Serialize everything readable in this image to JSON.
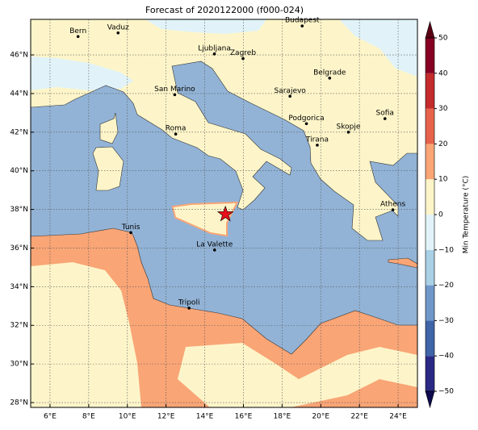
{
  "title": "Forecast of 2020122000 (f000-024)",
  "map": {
    "lonlim": [
      5.0,
      25.0
    ],
    "latlim": [
      27.75,
      47.84
    ],
    "lonticks": [
      {
        "value": 6,
        "label": "6°E"
      },
      {
        "value": 8,
        "label": "8°E"
      },
      {
        "value": 10,
        "label": "10°E"
      },
      {
        "value": 12,
        "label": "12°E"
      },
      {
        "value": 14,
        "label": "14°E"
      },
      {
        "value": 16,
        "label": "16°E"
      },
      {
        "value": 18,
        "label": "18°E"
      },
      {
        "value": 20,
        "label": "20°E"
      },
      {
        "value": 22,
        "label": "22°E"
      },
      {
        "value": 24,
        "label": "24°E"
      }
    ],
    "latticks": [
      {
        "value": 28,
        "label": "28°N"
      },
      {
        "value": 30,
        "label": "30°N"
      },
      {
        "value": 32,
        "label": "32°N"
      },
      {
        "value": 34,
        "label": "34°N"
      },
      {
        "value": 36,
        "label": "36°N"
      },
      {
        "value": 38,
        "label": "38°N"
      },
      {
        "value": 40,
        "label": "40°N"
      },
      {
        "value": 42,
        "label": "42°N"
      },
      {
        "value": 44,
        "label": "44°N"
      },
      {
        "value": 46,
        "label": "46°N"
      }
    ],
    "grid": true,
    "cities": [
      {
        "name": "Bern",
        "lon": 7.45,
        "lat": 46.95
      },
      {
        "name": "Vaduz",
        "lon": 9.52,
        "lat": 47.14
      },
      {
        "name": "Budapest",
        "lon": 19.04,
        "lat": 47.5
      },
      {
        "name": "Ljubljana",
        "lon": 14.5,
        "lat": 46.05
      },
      {
        "name": "Zagreb",
        "lon": 15.98,
        "lat": 45.81
      },
      {
        "name": "San Marino",
        "lon": 12.45,
        "lat": 43.94
      },
      {
        "name": "Belgrade",
        "lon": 20.46,
        "lat": 44.8
      },
      {
        "name": "Sarajevo",
        "lon": 18.41,
        "lat": 43.86
      },
      {
        "name": "Sofia",
        "lon": 23.32,
        "lat": 42.7
      },
      {
        "name": "Roma",
        "lon": 12.5,
        "lat": 41.9
      },
      {
        "name": "Podgorica",
        "lon": 19.26,
        "lat": 42.44
      },
      {
        "name": "Skopje",
        "lon": 21.43,
        "lat": 42.0
      },
      {
        "name": "Tirana",
        "lon": 19.82,
        "lat": 41.33
      },
      {
        "name": "Athens",
        "lon": 23.73,
        "lat": 37.98
      },
      {
        "name": "Tunis",
        "lon": 10.18,
        "lat": 36.8
      },
      {
        "name": "La Valette",
        "lon": 14.51,
        "lat": 35.9
      },
      {
        "name": "Tripoli",
        "lon": 13.19,
        "lat": 32.89
      }
    ],
    "event": {
      "lon": 15.07,
      "lat": 37.75,
      "color": "#e8101a"
    }
  },
  "colorbar": {
    "label": "Min Temperature (°C)",
    "ticks": [
      {
        "value": -50,
        "label": "−50"
      },
      {
        "value": -40,
        "label": "−40"
      },
      {
        "value": -30,
        "label": "−30"
      },
      {
        "value": -20,
        "label": "−20"
      },
      {
        "value": -10,
        "label": "−10"
      },
      0,
      10,
      20,
      30,
      40,
      50
    ],
    "colors": [
      "#2a2a85",
      "#4064a8",
      "#6f98c9",
      "#a9d0e4",
      "#e1f3f8",
      "#fdf5c9",
      "#f9a576",
      "#e7624b",
      "#c42b2c",
      "#850022"
    ],
    "extend_colors": [
      "#0e0b4f",
      "#5a0015"
    ]
  }
}
